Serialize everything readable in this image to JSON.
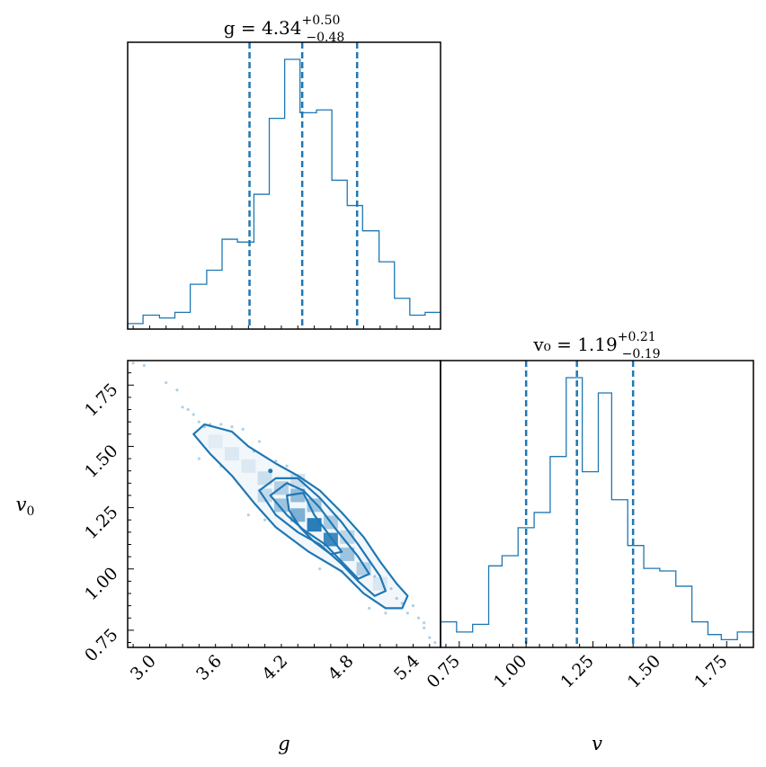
{
  "colors": {
    "accent": "#1f77b4",
    "frame": "#000000"
  },
  "chart_data": [
    {
      "type": "histogram",
      "panel": "g-marginal",
      "title": {
        "prefix": "g = 4.34",
        "sup": "+0.50",
        "sub": "−0.48"
      },
      "xlim": [
        2.75,
        5.6
      ],
      "bin_edges": [
        2.75,
        2.89,
        3.04,
        3.18,
        3.32,
        3.47,
        3.61,
        3.75,
        3.9,
        4.04,
        4.18,
        4.32,
        4.47,
        4.61,
        4.75,
        4.89,
        5.04,
        5.18,
        5.32,
        5.46,
        5.6
      ],
      "counts": [
        1,
        4,
        3,
        5,
        15,
        20,
        31,
        30,
        47,
        74,
        95,
        76,
        77,
        52,
        43,
        34,
        23,
        10,
        4,
        5
      ],
      "quantiles": [
        3.86,
        4.34,
        4.84
      ],
      "x_ticks": [
        3.0,
        3.6,
        4.2,
        4.8,
        5.4
      ]
    },
    {
      "type": "heatmap",
      "panel": "g-v0-joint",
      "xlabel": "g",
      "ylabel": "v0",
      "xlim": [
        2.75,
        5.6
      ],
      "ylim": [
        0.68,
        1.85
      ],
      "x_ticks": [
        "3.0",
        "3.6",
        "4.2",
        "4.8",
        "5.4"
      ],
      "y_ticks": [
        "0.75",
        "1.00",
        "1.25",
        "1.50",
        "1.75"
      ],
      "cells": [
        {
          "x": 3.55,
          "y": 1.52,
          "a": 0.08
        },
        {
          "x": 3.7,
          "y": 1.47,
          "a": 0.1
        },
        {
          "x": 3.85,
          "y": 1.42,
          "a": 0.1
        },
        {
          "x": 4.0,
          "y": 1.37,
          "a": 0.18
        },
        {
          "x": 4.0,
          "y": 1.3,
          "a": 0.22
        },
        {
          "x": 4.15,
          "y": 1.33,
          "a": 0.3
        },
        {
          "x": 4.15,
          "y": 1.26,
          "a": 0.4
        },
        {
          "x": 4.3,
          "y": 1.3,
          "a": 0.45
        },
        {
          "x": 4.3,
          "y": 1.22,
          "a": 0.55
        },
        {
          "x": 4.45,
          "y": 1.18,
          "a": 0.95
        },
        {
          "x": 4.45,
          "y": 1.26,
          "a": 0.4
        },
        {
          "x": 4.6,
          "y": 1.12,
          "a": 0.85
        },
        {
          "x": 4.6,
          "y": 1.19,
          "a": 0.35
        },
        {
          "x": 4.75,
          "y": 1.06,
          "a": 0.4
        },
        {
          "x": 4.75,
          "y": 1.13,
          "a": 0.25
        },
        {
          "x": 4.9,
          "y": 1.0,
          "a": 0.3
        },
        {
          "x": 5.05,
          "y": 0.94,
          "a": 0.12
        },
        {
          "x": 4.3,
          "y": 1.36,
          "a": 0.2
        }
      ],
      "points": [
        [
          2.8,
          1.84
        ],
        [
          2.9,
          1.83
        ],
        [
          3.1,
          1.76
        ],
        [
          3.2,
          1.73
        ],
        [
          3.25,
          1.66
        ],
        [
          3.35,
          1.63
        ],
        [
          3.4,
          1.6
        ],
        [
          3.3,
          1.65
        ],
        [
          3.45,
          1.58
        ],
        [
          3.5,
          1.59
        ],
        [
          3.6,
          1.59
        ],
        [
          3.7,
          1.58
        ],
        [
          3.8,
          1.57
        ],
        [
          3.95,
          1.52
        ],
        [
          3.4,
          1.45
        ],
        [
          3.6,
          1.42
        ],
        [
          3.9,
          1.48
        ],
        [
          4.1,
          1.44
        ],
        [
          3.85,
          1.22
        ],
        [
          4.0,
          1.2
        ],
        [
          4.2,
          1.42
        ],
        [
          5.0,
          0.97
        ],
        [
          5.2,
          0.88
        ],
        [
          5.3,
          0.82
        ],
        [
          5.4,
          0.8
        ],
        [
          5.45,
          0.76
        ],
        [
          5.5,
          0.72
        ],
        [
          5.55,
          0.7
        ],
        [
          5.35,
          0.85
        ],
        [
          5.1,
          0.82
        ],
        [
          4.5,
          1.0
        ],
        [
          4.7,
          0.99
        ],
        [
          5.15,
          0.92
        ],
        [
          5.25,
          0.86
        ],
        [
          4.95,
          0.84
        ],
        [
          5.45,
          0.78
        ]
      ],
      "contours": [
        [
          [
            3.35,
            1.55
          ],
          [
            3.45,
            1.59
          ],
          [
            3.7,
            1.56
          ],
          [
            3.85,
            1.5
          ],
          [
            4.1,
            1.43
          ],
          [
            4.3,
            1.38
          ],
          [
            4.5,
            1.32
          ],
          [
            4.7,
            1.23
          ],
          [
            4.9,
            1.13
          ],
          [
            5.05,
            1.03
          ],
          [
            5.2,
            0.94
          ],
          [
            5.3,
            0.89
          ],
          [
            5.25,
            0.84
          ],
          [
            5.1,
            0.84
          ],
          [
            4.9,
            0.9
          ],
          [
            4.7,
            0.99
          ],
          [
            4.4,
            1.07
          ],
          [
            4.1,
            1.17
          ],
          [
            3.9,
            1.27
          ],
          [
            3.7,
            1.38
          ],
          [
            3.5,
            1.47
          ],
          [
            3.35,
            1.55
          ]
        ],
        [
          [
            3.95,
            1.32
          ],
          [
            4.1,
            1.37
          ],
          [
            4.3,
            1.37
          ],
          [
            4.5,
            1.29
          ],
          [
            4.7,
            1.19
          ],
          [
            4.85,
            1.1
          ],
          [
            5.05,
            0.97
          ],
          [
            5.1,
            0.91
          ],
          [
            5.0,
            0.89
          ],
          [
            4.85,
            0.95
          ],
          [
            4.7,
            1.02
          ],
          [
            4.5,
            1.1
          ],
          [
            4.3,
            1.15
          ],
          [
            4.1,
            1.22
          ],
          [
            3.95,
            1.32
          ]
        ],
        [
          [
            4.05,
            1.3
          ],
          [
            4.2,
            1.35
          ],
          [
            4.35,
            1.32
          ],
          [
            4.5,
            1.25
          ],
          [
            4.65,
            1.16
          ],
          [
            4.85,
            1.05
          ],
          [
            4.95,
            0.98
          ],
          [
            4.85,
            0.96
          ],
          [
            4.7,
            1.03
          ],
          [
            4.55,
            1.1
          ],
          [
            4.35,
            1.16
          ],
          [
            4.2,
            1.22
          ],
          [
            4.05,
            1.3
          ]
        ],
        [
          [
            4.2,
            1.3
          ],
          [
            4.35,
            1.31
          ],
          [
            4.45,
            1.22
          ],
          [
            4.55,
            1.16
          ],
          [
            4.7,
            1.07
          ],
          [
            4.6,
            1.06
          ],
          [
            4.45,
            1.11
          ],
          [
            4.32,
            1.17
          ],
          [
            4.22,
            1.24
          ],
          [
            4.2,
            1.3
          ]
        ]
      ]
    },
    {
      "type": "histogram",
      "panel": "v0-marginal",
      "title": {
        "prefix": "v₀ = 1.19",
        "sup": "+0.21",
        "sub": "−0.19"
      },
      "xlabel": "v0",
      "xlim": [
        0.68,
        1.85
      ],
      "bin_edges": [
        0.68,
        0.74,
        0.8,
        0.86,
        0.91,
        0.97,
        1.03,
        1.09,
        1.15,
        1.21,
        1.27,
        1.32,
        1.38,
        1.44,
        1.5,
        1.56,
        1.62,
        1.68,
        1.73,
        1.79,
        1.85
      ],
      "counts": [
        9,
        5,
        8,
        31,
        35,
        46,
        52,
        74,
        105,
        68,
        99,
        57,
        39,
        30,
        29,
        23,
        9,
        4,
        2,
        5
      ],
      "quantiles": [
        1.0,
        1.19,
        1.4
      ],
      "x_ticks": [
        "0.75",
        "1.00",
        "1.25",
        "1.50",
        "1.75"
      ]
    }
  ]
}
